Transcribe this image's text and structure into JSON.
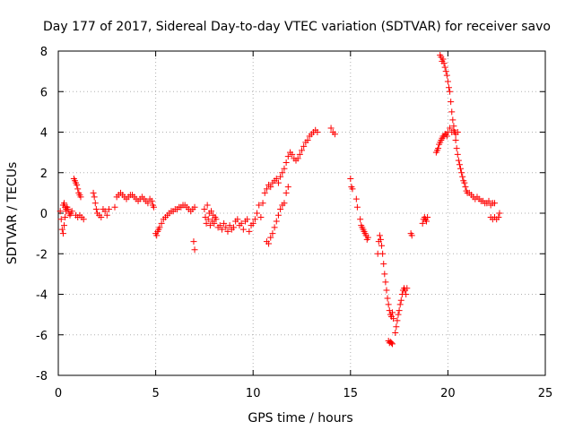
{
  "chart_data": {
    "type": "scatter",
    "title": "Day 177 of 2017, Sidereal Day-to-day VTEC variation (SDTVAR) for receiver savo",
    "xlabel": "GPS time / hours",
    "ylabel": "SDTVAR / TECUs",
    "xlim": [
      0,
      25
    ],
    "ylim": [
      -8,
      8
    ],
    "xticks": [
      "0",
      "5",
      "10",
      "15",
      "20",
      "25"
    ],
    "yticks": [
      "-8",
      "-6",
      "-4",
      "-2",
      "0",
      "2",
      "4",
      "6",
      "8"
    ],
    "grid": true,
    "marker": "+",
    "color": "#ff0000",
    "series": [
      {
        "x": [
          0.1,
          0.15,
          0.2,
          0.25,
          0.3,
          0.35,
          0.4,
          0.45,
          0.5,
          0.55,
          0.6,
          0.65,
          0.7,
          0.25,
          0.3,
          0.35,
          0.4,
          0.45,
          0.8,
          0.85,
          0.9,
          0.95,
          1.0,
          1.05,
          1.1,
          1.15,
          0.9,
          1.0,
          1.1,
          1.2,
          1.3,
          1.8,
          1.85,
          1.9,
          1.95,
          2.0,
          2.1,
          2.2,
          2.3,
          2.4,
          2.5,
          2.6,
          2.9,
          3.0,
          3.1,
          3.2,
          3.3,
          3.4,
          3.5,
          3.6,
          3.7,
          3.8,
          3.9,
          4.0,
          4.1,
          4.2,
          4.3,
          4.4,
          4.5,
          4.6,
          4.7,
          4.8,
          4.85,
          4.9,
          5.0,
          5.05,
          5.1,
          5.15,
          5.2,
          5.3,
          5.4,
          5.5,
          5.6,
          5.7,
          5.8,
          5.9,
          6.0,
          6.1,
          6.2,
          6.3,
          6.4,
          6.5,
          6.6,
          6.7,
          6.8,
          6.9,
          7.0,
          6.95,
          7.0,
          7.5,
          7.55,
          7.6,
          7.65,
          7.7,
          7.75,
          7.8,
          7.85,
          7.9,
          7.95,
          8.0,
          8.05,
          8.1,
          8.2,
          8.3,
          8.4,
          8.5,
          8.6,
          8.7,
          8.8,
          8.9,
          9.0,
          9.1,
          9.2,
          9.3,
          9.4,
          9.5,
          9.6,
          9.7,
          9.8,
          9.9,
          10.0,
          10.1,
          10.2,
          10.3,
          10.4,
          10.5,
          10.6,
          10.7,
          10.8,
          10.9,
          11.0,
          11.1,
          11.2,
          11.3,
          11.4,
          11.5,
          11.6,
          11.7,
          11.8,
          11.9,
          12.0,
          12.1,
          12.2,
          12.3,
          12.4,
          12.5,
          12.6,
          12.7,
          12.8,
          12.9,
          13.0,
          13.1,
          13.2,
          13.3,
          10.7,
          10.8,
          10.9,
          11.0,
          11.1,
          11.2,
          11.3,
          11.4,
          11.5,
          11.6,
          11.7,
          11.8,
          14.0,
          14.1,
          14.2,
          15.0,
          15.05,
          15.1,
          15.3,
          15.35,
          15.5,
          15.55,
          15.6,
          15.65,
          15.7,
          15.75,
          15.8,
          15.85,
          15.9,
          16.4,
          16.45,
          16.5,
          16.55,
          16.6,
          16.65,
          16.7,
          16.75,
          16.8,
          16.85,
          16.9,
          16.95,
          17.0,
          17.05,
          17.1,
          17.15,
          17.2,
          16.95,
          17.0,
          17.05,
          17.1,
          17.15,
          17.3,
          17.35,
          17.4,
          17.45,
          17.5,
          17.55,
          17.6,
          17.65,
          17.7,
          17.75,
          17.8,
          17.85,
          17.9,
          18.1,
          18.15,
          18.7,
          18.75,
          18.8,
          18.85,
          18.9,
          18.95,
          19.4,
          19.45,
          19.5,
          19.55,
          19.6,
          19.65,
          19.7,
          19.75,
          19.8,
          19.85,
          19.9,
          19.95,
          20.0,
          19.6,
          19.65,
          19.7,
          19.75,
          19.8,
          19.85,
          19.9,
          19.95,
          20.0,
          20.05,
          20.1,
          20.15,
          20.2,
          20.25,
          20.3,
          20.35,
          20.4,
          20.45,
          20.5,
          20.55,
          20.6,
          20.65,
          20.7,
          20.75,
          20.8,
          20.85,
          20.9,
          20.95,
          21.0,
          20.1,
          20.2,
          20.3,
          20.4,
          20.5,
          21.1,
          21.2,
          21.3,
          21.4,
          21.5,
          21.6,
          21.7,
          21.8,
          21.9,
          22.0,
          22.1,
          22.2,
          22.3,
          22.4,
          22.2,
          22.3,
          22.4,
          22.5,
          22.6,
          22.65
        ],
        "y": [
          0.1,
          -0.3,
          -0.8,
          -1.0,
          -0.6,
          -0.2,
          0.1,
          0.3,
          0.2,
          0.0,
          -0.1,
          0.0,
          0.1,
          0.4,
          0.5,
          0.3,
          0.2,
          0.3,
          1.7,
          1.6,
          1.5,
          1.4,
          1.2,
          1.0,
          0.9,
          0.8,
          -0.1,
          -0.2,
          -0.1,
          -0.2,
          -0.3,
          1.0,
          0.8,
          0.5,
          0.2,
          0.0,
          -0.1,
          -0.2,
          0.2,
          0.1,
          -0.1,
          0.2,
          0.3,
          0.8,
          0.9,
          1.0,
          0.9,
          0.8,
          0.7,
          0.8,
          0.9,
          0.9,
          0.8,
          0.7,
          0.6,
          0.7,
          0.8,
          0.7,
          0.6,
          0.5,
          0.7,
          0.6,
          0.4,
          0.3,
          -1.0,
          -1.1,
          -0.9,
          -0.8,
          -0.7,
          -0.5,
          -0.3,
          -0.2,
          -0.1,
          0.0,
          0.1,
          0.1,
          0.2,
          0.2,
          0.3,
          0.3,
          0.4,
          0.4,
          0.3,
          0.2,
          0.1,
          0.2,
          0.3,
          -1.4,
          -1.8,
          0.2,
          -0.2,
          -0.5,
          0.4,
          -0.3,
          0.0,
          -0.6,
          0.1,
          -0.4,
          -0.1,
          -0.5,
          -0.2,
          -0.3,
          -0.7,
          -0.6,
          -0.8,
          -0.5,
          -0.7,
          -0.9,
          -0.6,
          -0.8,
          -0.7,
          -0.4,
          -0.3,
          -0.6,
          -0.5,
          -0.8,
          -0.4,
          -0.3,
          -0.9,
          -0.6,
          -0.5,
          -0.3,
          0.0,
          0.4,
          -0.2,
          0.5,
          1.0,
          1.2,
          1.4,
          1.3,
          1.5,
          1.6,
          1.7,
          1.5,
          1.8,
          2.0,
          2.2,
          2.5,
          2.8,
          3.0,
          2.9,
          2.7,
          2.6,
          2.7,
          2.9,
          3.1,
          3.3,
          3.5,
          3.6,
          3.8,
          3.9,
          4.0,
          4.1,
          4.0,
          -1.4,
          -1.5,
          -1.2,
          -1.0,
          -0.7,
          -0.4,
          -0.1,
          0.2,
          0.4,
          0.5,
          1.0,
          1.3,
          4.2,
          4.0,
          3.9,
          1.7,
          1.3,
          1.2,
          0.7,
          0.3,
          -0.3,
          -0.6,
          -0.7,
          -0.8,
          -0.9,
          -1.0,
          -1.1,
          -1.3,
          -1.2,
          -2.0,
          -1.4,
          -1.1,
          -1.3,
          -1.6,
          -2.0,
          -2.5,
          -3.0,
          -3.4,
          -3.8,
          -4.2,
          -4.5,
          -4.8,
          -5.0,
          -5.1,
          -4.9,
          -5.2,
          -6.3,
          -6.4,
          -6.35,
          -6.4,
          -6.45,
          -5.9,
          -5.6,
          -5.3,
          -5.0,
          -4.8,
          -4.5,
          -4.3,
          -4.0,
          -3.8,
          -3.7,
          -3.8,
          -4.0,
          -3.7,
          -1.0,
          -1.1,
          -0.5,
          -0.3,
          -0.2,
          -0.3,
          -0.4,
          -0.2,
          3.0,
          3.1,
          3.2,
          3.4,
          3.5,
          3.6,
          3.7,
          3.8,
          3.8,
          3.9,
          3.9,
          3.8,
          4.0,
          7.8,
          7.7,
          7.5,
          7.6,
          7.4,
          7.2,
          7.0,
          6.8,
          6.5,
          6.2,
          6.0,
          5.5,
          5.0,
          4.6,
          4.3,
          4.0,
          3.6,
          3.2,
          2.9,
          2.6,
          2.4,
          2.2,
          2.0,
          1.8,
          1.6,
          1.5,
          1.3,
          1.1,
          1.0,
          4.2,
          4.0,
          4.1,
          3.9,
          4.0,
          1.0,
          0.9,
          0.8,
          0.7,
          0.8,
          0.7,
          0.6,
          0.6,
          0.5,
          0.5,
          0.6,
          0.4,
          0.5,
          0.5,
          -0.2,
          -0.3,
          -0.2,
          -0.3,
          -0.2,
          0.0
        ]
      }
    ]
  }
}
